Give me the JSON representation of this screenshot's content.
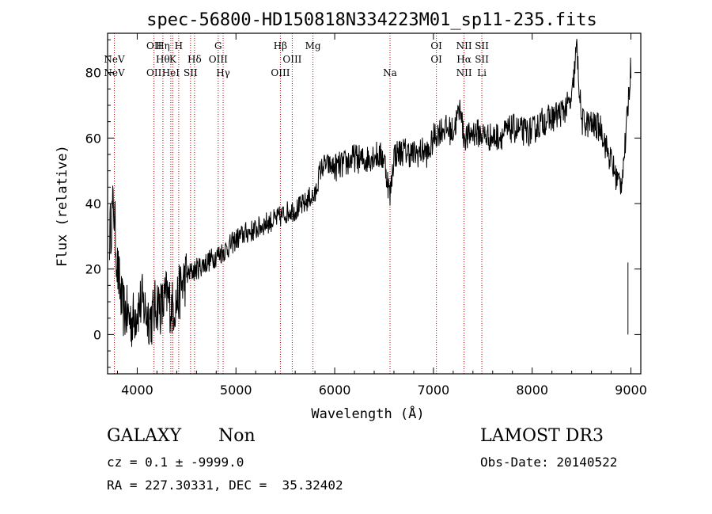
{
  "chart_data": {
    "type": "line",
    "title": "spec-56800-HD150818N334223M01_sp11-235.fits",
    "xlabel": "Wavelength (Å)",
    "ylabel": "Flux (relative)",
    "xlim": [
      3700,
      9100
    ],
    "ylim": [
      -12,
      92
    ],
    "xticks": [
      4000,
      5000,
      6000,
      7000,
      8000,
      9000
    ],
    "yticks": [
      0,
      20,
      40,
      60,
      80
    ],
    "series": [
      {
        "name": "flux",
        "x": [
          3720,
          3760,
          3800,
          3850,
          3900,
          3950,
          4000,
          4050,
          4100,
          4150,
          4200,
          4250,
          4300,
          4350,
          4400,
          4450,
          4500,
          4600,
          4700,
          4800,
          4900,
          5000,
          5100,
          5200,
          5300,
          5400,
          5500,
          5550,
          5600,
          5700,
          5750,
          5800,
          5850,
          5900,
          6000,
          6100,
          6200,
          6300,
          6400,
          6500,
          6560,
          6600,
          6700,
          6800,
          6900,
          6950,
          7000,
          7050,
          7100,
          7200,
          7280,
          7300,
          7350,
          7400,
          7500,
          7600,
          7700,
          7800,
          7900,
          8000,
          8100,
          8200,
          8300,
          8400,
          8450,
          8500,
          8600,
          8700,
          8750,
          8800,
          8850,
          8900,
          8950,
          8970,
          9000
        ],
        "y": [
          30,
          40,
          20,
          8,
          6,
          4,
          8,
          10,
          6,
          5,
          10,
          8,
          12,
          8,
          10,
          15,
          18,
          20,
          22,
          24,
          26,
          29,
          31,
          32,
          34,
          35,
          37,
          38,
          38,
          40,
          42,
          42,
          50,
          52,
          51,
          52,
          54,
          53,
          55,
          54,
          42,
          55,
          56,
          55,
          56,
          55,
          60,
          62,
          63,
          62,
          70,
          61,
          60,
          62,
          61,
          60,
          61,
          63,
          62,
          62,
          65,
          66,
          68,
          71,
          88,
          65,
          64,
          63,
          57,
          53,
          48,
          46,
          60,
          70,
          82
        ]
      }
    ],
    "lines": [
      {
        "x": 3768,
        "row1": "",
        "row2": "NeV",
        "row3": "NeV"
      },
      {
        "x": 4170,
        "row1": "OII",
        "row2": "",
        "row3": "OII"
      },
      {
        "x": 4260,
        "row1": "Hη",
        "row2": "Hθ",
        "row3": ""
      },
      {
        "x": 4340,
        "row1": "",
        "row2": "",
        "row3": "HeI"
      },
      {
        "x": 4360,
        "row1": "",
        "row2": "K",
        "row3": ""
      },
      {
        "x": 4420,
        "row1": "H",
        "row2": "",
        "row3": ""
      },
      {
        "x": 4540,
        "row1": "",
        "row2": "",
        "row3": "SII"
      },
      {
        "x": 4580,
        "row1": "",
        "row2": "Hδ",
        "row3": ""
      },
      {
        "x": 4820,
        "row1": "G",
        "row2": "OIII",
        "row3": ""
      },
      {
        "x": 4870,
        "row1": "",
        "row2": "",
        "row3": "Hγ"
      },
      {
        "x": 5450,
        "row1": "Hβ",
        "row2": "",
        "row3": "OIII"
      },
      {
        "x": 5570,
        "row1": "",
        "row2": "OIII",
        "row3": ""
      },
      {
        "x": 5780,
        "row1": "Mg",
        "row2": "",
        "row3": ""
      },
      {
        "x": 6560,
        "row1": "",
        "row2": "",
        "row3": "Na"
      },
      {
        "x": 7030,
        "row1": "OI",
        "row2": "OI",
        "row3": ""
      },
      {
        "x": 7310,
        "row1": "NII",
        "row2": "Hα",
        "row3": "NII"
      },
      {
        "x": 7490,
        "row1": "SII",
        "row2": "SII",
        "row3": "Li"
      }
    ]
  },
  "info": {
    "class_label": "GALAXY",
    "subclass_label": "Non",
    "survey_label": "LAMOST DR3",
    "cz_line": "cz = 0.1 ± -9999.0",
    "obs_date_line": "Obs-Date: 20140522",
    "coord_line": "RA = 227.30331, DEC =  35.32402"
  },
  "colors": {
    "axis": "#000000",
    "spectrum": "#000000",
    "marker_line": "#c00000"
  }
}
